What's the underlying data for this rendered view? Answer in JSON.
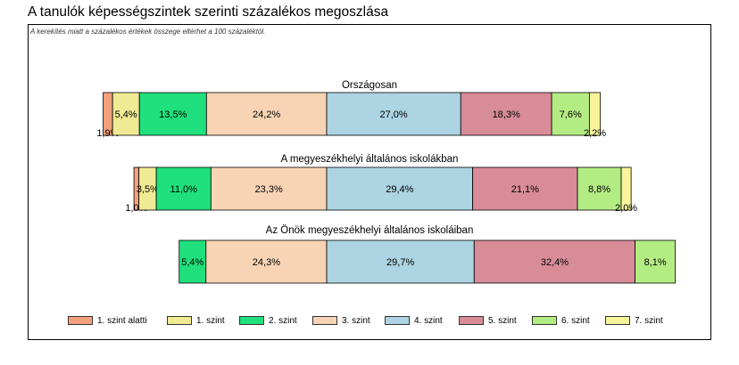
{
  "chart_data": {
    "type": "bar",
    "orientation": "horizontal-stacked-100",
    "title": "A tanulók képességszintek szerinti százalékos megoszlása",
    "note": "A kerekítés miatt a százalékos értékek összege eltérhet a 100 százaléktól.",
    "categories": [
      "Országosan",
      "A megyeszékhelyi általános iskolákban",
      "Az Önök megyeszékhelyi általános iskoláiban"
    ],
    "series": [
      {
        "name": "1. szint alatti",
        "color": "#f4a07c",
        "values": [
          1.9,
          1.0,
          0
        ]
      },
      {
        "name": "1. szint",
        "color": "#f0ea94",
        "values": [
          5.4,
          3.5,
          0
        ]
      },
      {
        "name": "2. szint",
        "color": "#1fe07c",
        "values": [
          13.5,
          11.0,
          5.4
        ]
      },
      {
        "name": "3. szint",
        "color": "#f8d4b4",
        "values": [
          24.2,
          23.3,
          24.3
        ]
      },
      {
        "name": "4. szint",
        "color": "#acd4e2",
        "values": [
          27.0,
          29.4,
          29.7
        ]
      },
      {
        "name": "5. szint",
        "color": "#d88c98",
        "values": [
          18.3,
          21.1,
          32.4
        ]
      },
      {
        "name": "6. szint",
        "color": "#b4ec84",
        "values": [
          7.6,
          8.8,
          8.1
        ]
      },
      {
        "name": "7. szint",
        "color": "#f8f49c",
        "values": [
          2.2,
          2.0,
          0
        ]
      }
    ],
    "data_labels": [
      [
        "1,9%",
        "5,4%",
        "13,5%",
        "24,2%",
        "27,0%",
        "18,3%",
        "7,6%",
        "2,2%"
      ],
      [
        "1,0%",
        "3,5%",
        "11,0%",
        "23,3%",
        "29,4%",
        "21,1%",
        "8,8%",
        "2,0%"
      ],
      [
        "",
        "",
        "5,4%",
        "24,3%",
        "29,7%",
        "32,4%",
        "8,1%",
        ""
      ]
    ],
    "label_placement": [
      [
        "below",
        "inside",
        "inside",
        "inside",
        "inside",
        "inside",
        "inside",
        "below"
      ],
      [
        "below",
        "inside",
        "inside",
        "inside",
        "inside",
        "inside",
        "inside",
        "below"
      ],
      [
        "none",
        "none",
        "inside",
        "inside",
        "inside",
        "inside",
        "inside",
        "none"
      ]
    ],
    "alignment": "diverging, centered between levels 3 and 4",
    "legend_position": "bottom",
    "grid": false
  }
}
